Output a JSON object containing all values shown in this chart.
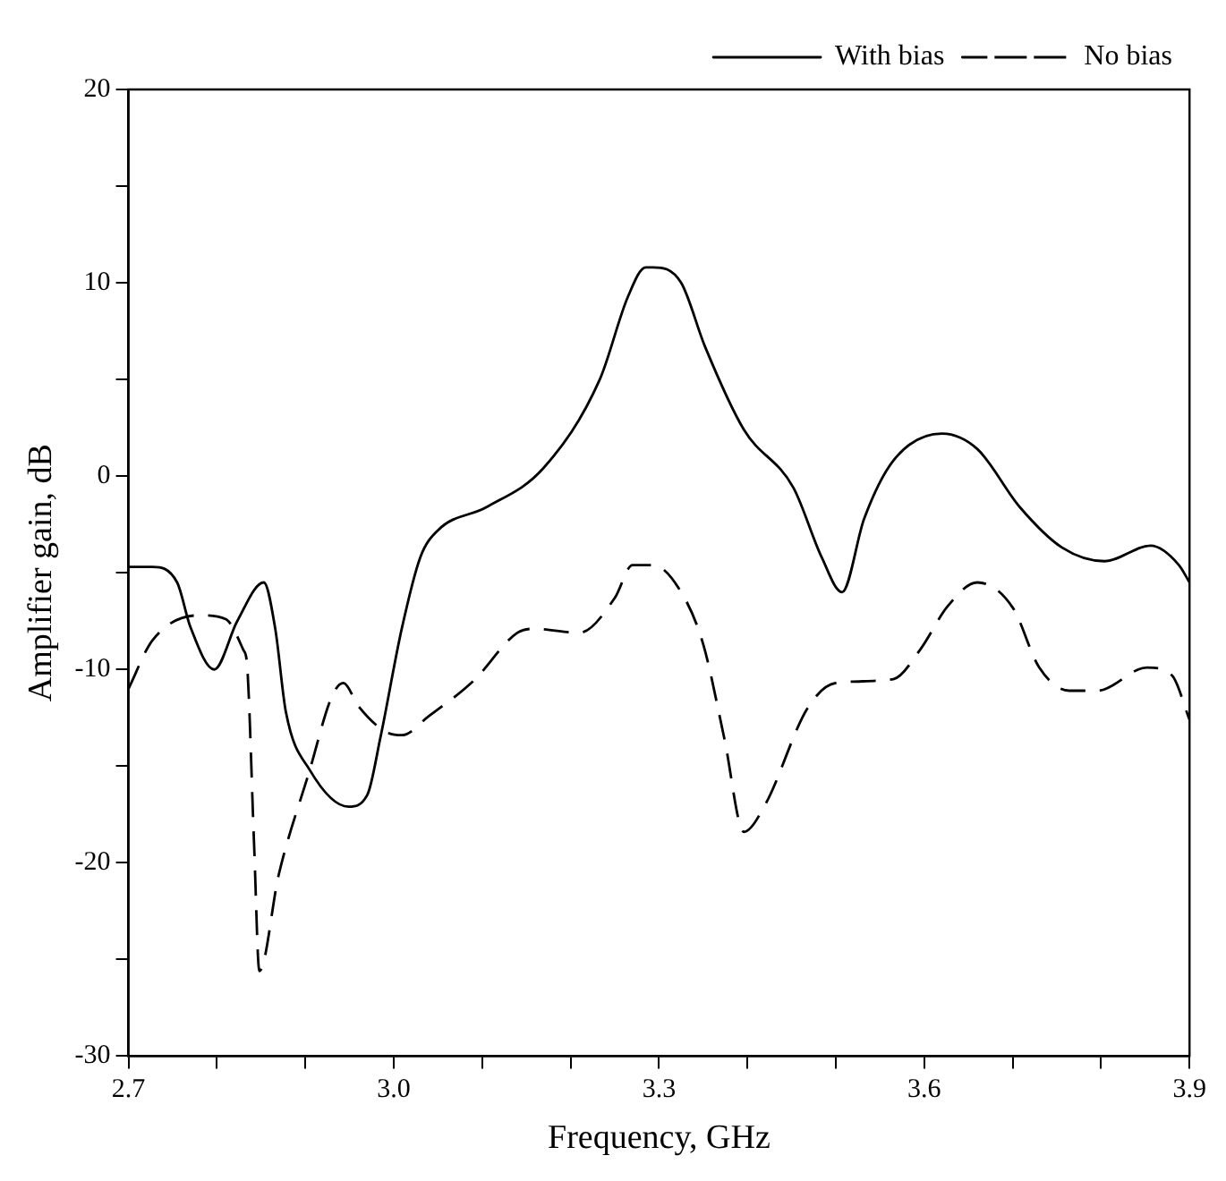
{
  "chart_data": {
    "type": "line",
    "xlabel": "Frequency, GHz",
    "ylabel": "Amplifier gain, dB",
    "xlim": [
      2.7,
      3.9
    ],
    "ylim": [
      -30,
      20
    ],
    "xticks": [
      {
        "value": 2.7,
        "label": "2.7"
      },
      {
        "value": 2.8,
        "label": null
      },
      {
        "value": 2.9,
        "label": null
      },
      {
        "value": 3.0,
        "label": "3.0"
      },
      {
        "value": 3.1,
        "label": null
      },
      {
        "value": 3.2,
        "label": null
      },
      {
        "value": 3.3,
        "label": "3.3"
      },
      {
        "value": 3.4,
        "label": null
      },
      {
        "value": 3.5,
        "label": null
      },
      {
        "value": 3.6,
        "label": "3.6"
      },
      {
        "value": 3.7,
        "label": null
      },
      {
        "value": 3.8,
        "label": null
      },
      {
        "value": 3.9,
        "label": "3.9"
      }
    ],
    "yticks": [
      -30,
      {
        "value": -25,
        "label": null
      },
      -20,
      {
        "value": -15,
        "label": null
      },
      -10,
      {
        "value": -5,
        "label": null
      },
      0,
      {
        "value": 5,
        "label": null
      },
      10,
      {
        "value": 15,
        "label": null
      },
      20
    ],
    "grid": false,
    "legend": "top right",
    "marker": "none",
    "series": [
      {
        "name": "With bias",
        "color": "#000000",
        "line_style": "solid",
        "x": [
          2.7,
          2.727,
          2.755,
          2.77,
          2.797,
          2.823,
          2.853,
          2.866,
          2.878,
          2.905,
          2.949,
          2.97,
          2.985,
          3.009,
          3.03,
          3.05,
          3.105,
          3.169,
          3.233,
          3.265,
          3.285,
          3.293,
          3.325,
          3.352,
          3.396,
          3.452,
          3.484,
          3.507,
          3.532,
          3.565,
          3.62,
          3.66,
          3.708,
          3.756,
          3.804,
          3.856,
          3.888,
          3.9
        ],
        "values": [
          -4.7,
          -4.7,
          -5.5,
          -7.8,
          -10.0,
          -7.5,
          -5.5,
          -7.9,
          -12.2,
          -15.2,
          -17.1,
          -16.5,
          -13.5,
          -7.9,
          -4.2,
          -2.8,
          -1.6,
          0.4,
          5.0,
          9.3,
          10.8,
          10.8,
          10.0,
          6.7,
          2.4,
          -0.6,
          -4.2,
          -6.0,
          -2.2,
          0.8,
          2.2,
          1.4,
          -1.6,
          -3.7,
          -4.4,
          -3.6,
          -4.6,
          -5.5
        ]
      },
      {
        "name": "No bias",
        "color": "#000000",
        "line_style": "dashed",
        "x": [
          2.7,
          2.727,
          2.78,
          2.81,
          2.83,
          2.834,
          2.842,
          2.848,
          2.87,
          2.905,
          2.93,
          2.943,
          2.96,
          2.99,
          3.009,
          3.04,
          3.09,
          3.14,
          3.16,
          3.21,
          3.25,
          3.27,
          3.293,
          3.325,
          3.35,
          3.374,
          3.396,
          3.42,
          3.468,
          3.5,
          3.565,
          3.595,
          3.627,
          3.66,
          3.7,
          3.73,
          3.764,
          3.796,
          3.852,
          3.88,
          3.9
        ],
        "values": [
          -11.0,
          -8.5,
          -7.2,
          -7.4,
          -9.0,
          -9.7,
          -19.0,
          -25.6,
          -20.6,
          -15.2,
          -11.4,
          -10.7,
          -11.9,
          -13.2,
          -13.4,
          -12.4,
          -10.6,
          -8.1,
          -7.9,
          -8.1,
          -6.3,
          -4.6,
          -4.6,
          -6.0,
          -8.7,
          -13.6,
          -18.4,
          -17.0,
          -12.0,
          -10.7,
          -10.5,
          -9.0,
          -6.7,
          -5.5,
          -6.8,
          -9.9,
          -11.1,
          -11.1,
          -9.9,
          -10.3,
          -12.6
        ]
      }
    ]
  }
}
